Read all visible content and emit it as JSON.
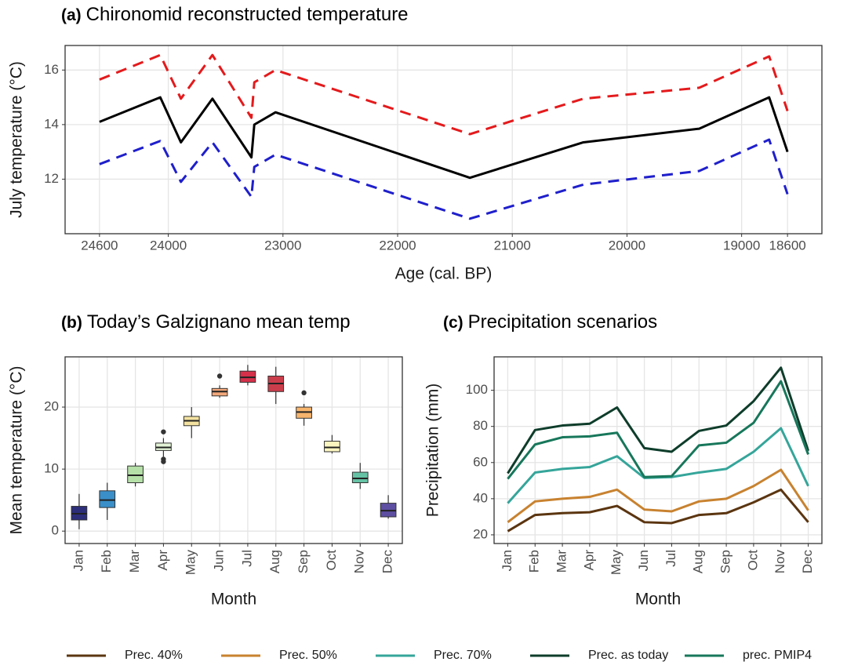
{
  "chart_data": [
    {
      "type": "line",
      "panel": "(a)",
      "title": "Chironomid reconstructed temperature",
      "xlabel": "Age (cal. BP)",
      "ylabel": "July temperature (°C)",
      "x": [
        24600,
        24070,
        23890,
        23615,
        23275,
        23250,
        23065,
        21370,
        20380,
        19370,
        18760,
        18600
      ],
      "series": [
        {
          "color": "#000000",
          "dash": false,
          "values": [
            14.1,
            15.0,
            13.35,
            14.95,
            12.8,
            14.0,
            14.45,
            12.05,
            13.35,
            13.85,
            15.0,
            13.0
          ]
        },
        {
          "color": "#e41a1c",
          "dash": true,
          "values": [
            15.65,
            16.55,
            14.95,
            16.55,
            14.25,
            15.55,
            16.0,
            13.65,
            14.95,
            15.35,
            16.5,
            14.5
          ]
        },
        {
          "color": "#1f1fcc",
          "dash": true,
          "values": [
            12.55,
            13.4,
            11.9,
            13.35,
            11.35,
            12.45,
            12.9,
            10.55,
            11.8,
            12.3,
            13.45,
            11.45
          ]
        }
      ],
      "xlim": [
        24900,
        18300
      ],
      "xticks": [
        24600,
        24000,
        23000,
        22000,
        21000,
        20000,
        19000,
        18600
      ],
      "ylim": [
        10,
        16.9
      ],
      "yticks": [
        12,
        14,
        16
      ],
      "grid": true
    },
    {
      "type": "box",
      "panel": "(b)",
      "title": "Today’s Galzignano mean temp",
      "xlabel": "Month",
      "ylabel": "Mean temperature (°C)",
      "categories": [
        "Jan",
        "Feb",
        "Mar",
        "Apr",
        "May",
        "Jun",
        "Jul",
        "Aug",
        "Sep",
        "Oct",
        "Nov",
        "Dec"
      ],
      "boxes": [
        {
          "color": "#2d2f7a",
          "min": 0.3,
          "q1": 1.8,
          "median": 2.8,
          "q3": 4.0,
          "max": 6.0,
          "outliers": []
        },
        {
          "color": "#3a8fc9",
          "min": 1.8,
          "q1": 3.8,
          "median": 5.0,
          "q3": 6.5,
          "max": 7.8,
          "outliers": []
        },
        {
          "color": "#b5e0a8",
          "min": 7.2,
          "q1": 7.8,
          "median": 9.0,
          "q3": 10.5,
          "max": 11.0,
          "outliers": []
        },
        {
          "color": "#e3f4d6",
          "min": 12.0,
          "q1": 13.0,
          "median": 13.5,
          "q3": 14.2,
          "max": 15.0,
          "outliers": [
            11.2,
            11.6,
            16.0
          ]
        },
        {
          "color": "#f3e2a0",
          "min": 15.0,
          "q1": 17.0,
          "median": 17.8,
          "q3": 18.5,
          "max": 20.0,
          "outliers": []
        },
        {
          "color": "#f2a77a",
          "min": 21.5,
          "q1": 21.8,
          "median": 22.5,
          "q3": 23.0,
          "max": 23.5,
          "outliers": [
            25.0
          ]
        },
        {
          "color": "#d6304a",
          "min": 23.5,
          "q1": 24.0,
          "median": 24.8,
          "q3": 25.8,
          "max": 26.8,
          "outliers": []
        },
        {
          "color": "#cc3d4b",
          "min": 20.5,
          "q1": 22.5,
          "median": 23.8,
          "q3": 25.0,
          "max": 26.5,
          "outliers": []
        },
        {
          "color": "#f7b46c",
          "min": 17.0,
          "q1": 18.2,
          "median": 19.2,
          "q3": 20.0,
          "max": 20.5,
          "outliers": [
            22.3
          ]
        },
        {
          "color": "#fbf6c0",
          "min": 12.5,
          "q1": 12.8,
          "median": 13.5,
          "q3": 14.5,
          "max": 15.5,
          "outliers": []
        },
        {
          "color": "#66c2a5",
          "min": 6.8,
          "q1": 7.8,
          "median": 8.5,
          "q3": 9.5,
          "max": 11.0,
          "outliers": []
        },
        {
          "color": "#5e4fa2",
          "min": 2.0,
          "q1": 2.3,
          "median": 3.3,
          "q3": 4.5,
          "max": 5.8,
          "outliers": []
        }
      ],
      "ylim": [
        -2,
        28.1
      ],
      "yticks": [
        0,
        10,
        20
      ],
      "grid": true
    },
    {
      "type": "line",
      "panel": "(c)",
      "title": "Precipitation scenarios",
      "xlabel": "Month",
      "ylabel": "Precipitation (mm)",
      "categories": [
        "Jan",
        "Feb",
        "Mar",
        "Apr",
        "May",
        "Jun",
        "Jul",
        "Aug",
        "Sep",
        "Oct",
        "Nov",
        "Dec"
      ],
      "series": [
        {
          "name": "Prec. 40%",
          "color": "#5b3510",
          "values": [
            22,
            31,
            32,
            32.5,
            36,
            27,
            26.5,
            31,
            32,
            38,
            45,
            27
          ]
        },
        {
          "name": "Prec. 50%",
          "color": "#c8822f",
          "values": [
            27,
            38.5,
            40,
            41,
            45,
            34,
            33,
            38.5,
            40,
            47,
            56,
            33.5
          ]
        },
        {
          "name": "Prec. 70%",
          "color": "#35a59a",
          "values": [
            37.5,
            54.5,
            56.5,
            57.5,
            63.5,
            51.5,
            52,
            54.5,
            56.5,
            66,
            79,
            47
          ]
        },
        {
          "name": "Prec. as today",
          "color": "#0e3d2b",
          "values": [
            54,
            78,
            80.5,
            81.5,
            90.5,
            68,
            66,
            77.5,
            80.5,
            94,
            112.5,
            66.5
          ]
        },
        {
          "name": "prec. PMIP4",
          "color": "#17775a",
          "values": [
            51,
            70,
            74,
            74.5,
            76.5,
            52,
            52.5,
            69.5,
            71,
            82,
            105,
            64.5
          ]
        }
      ],
      "ylim": [
        15.2,
        118.5
      ],
      "yticks": [
        20,
        40,
        60,
        80,
        100
      ],
      "grid": true,
      "legend": "bottom"
    }
  ]
}
